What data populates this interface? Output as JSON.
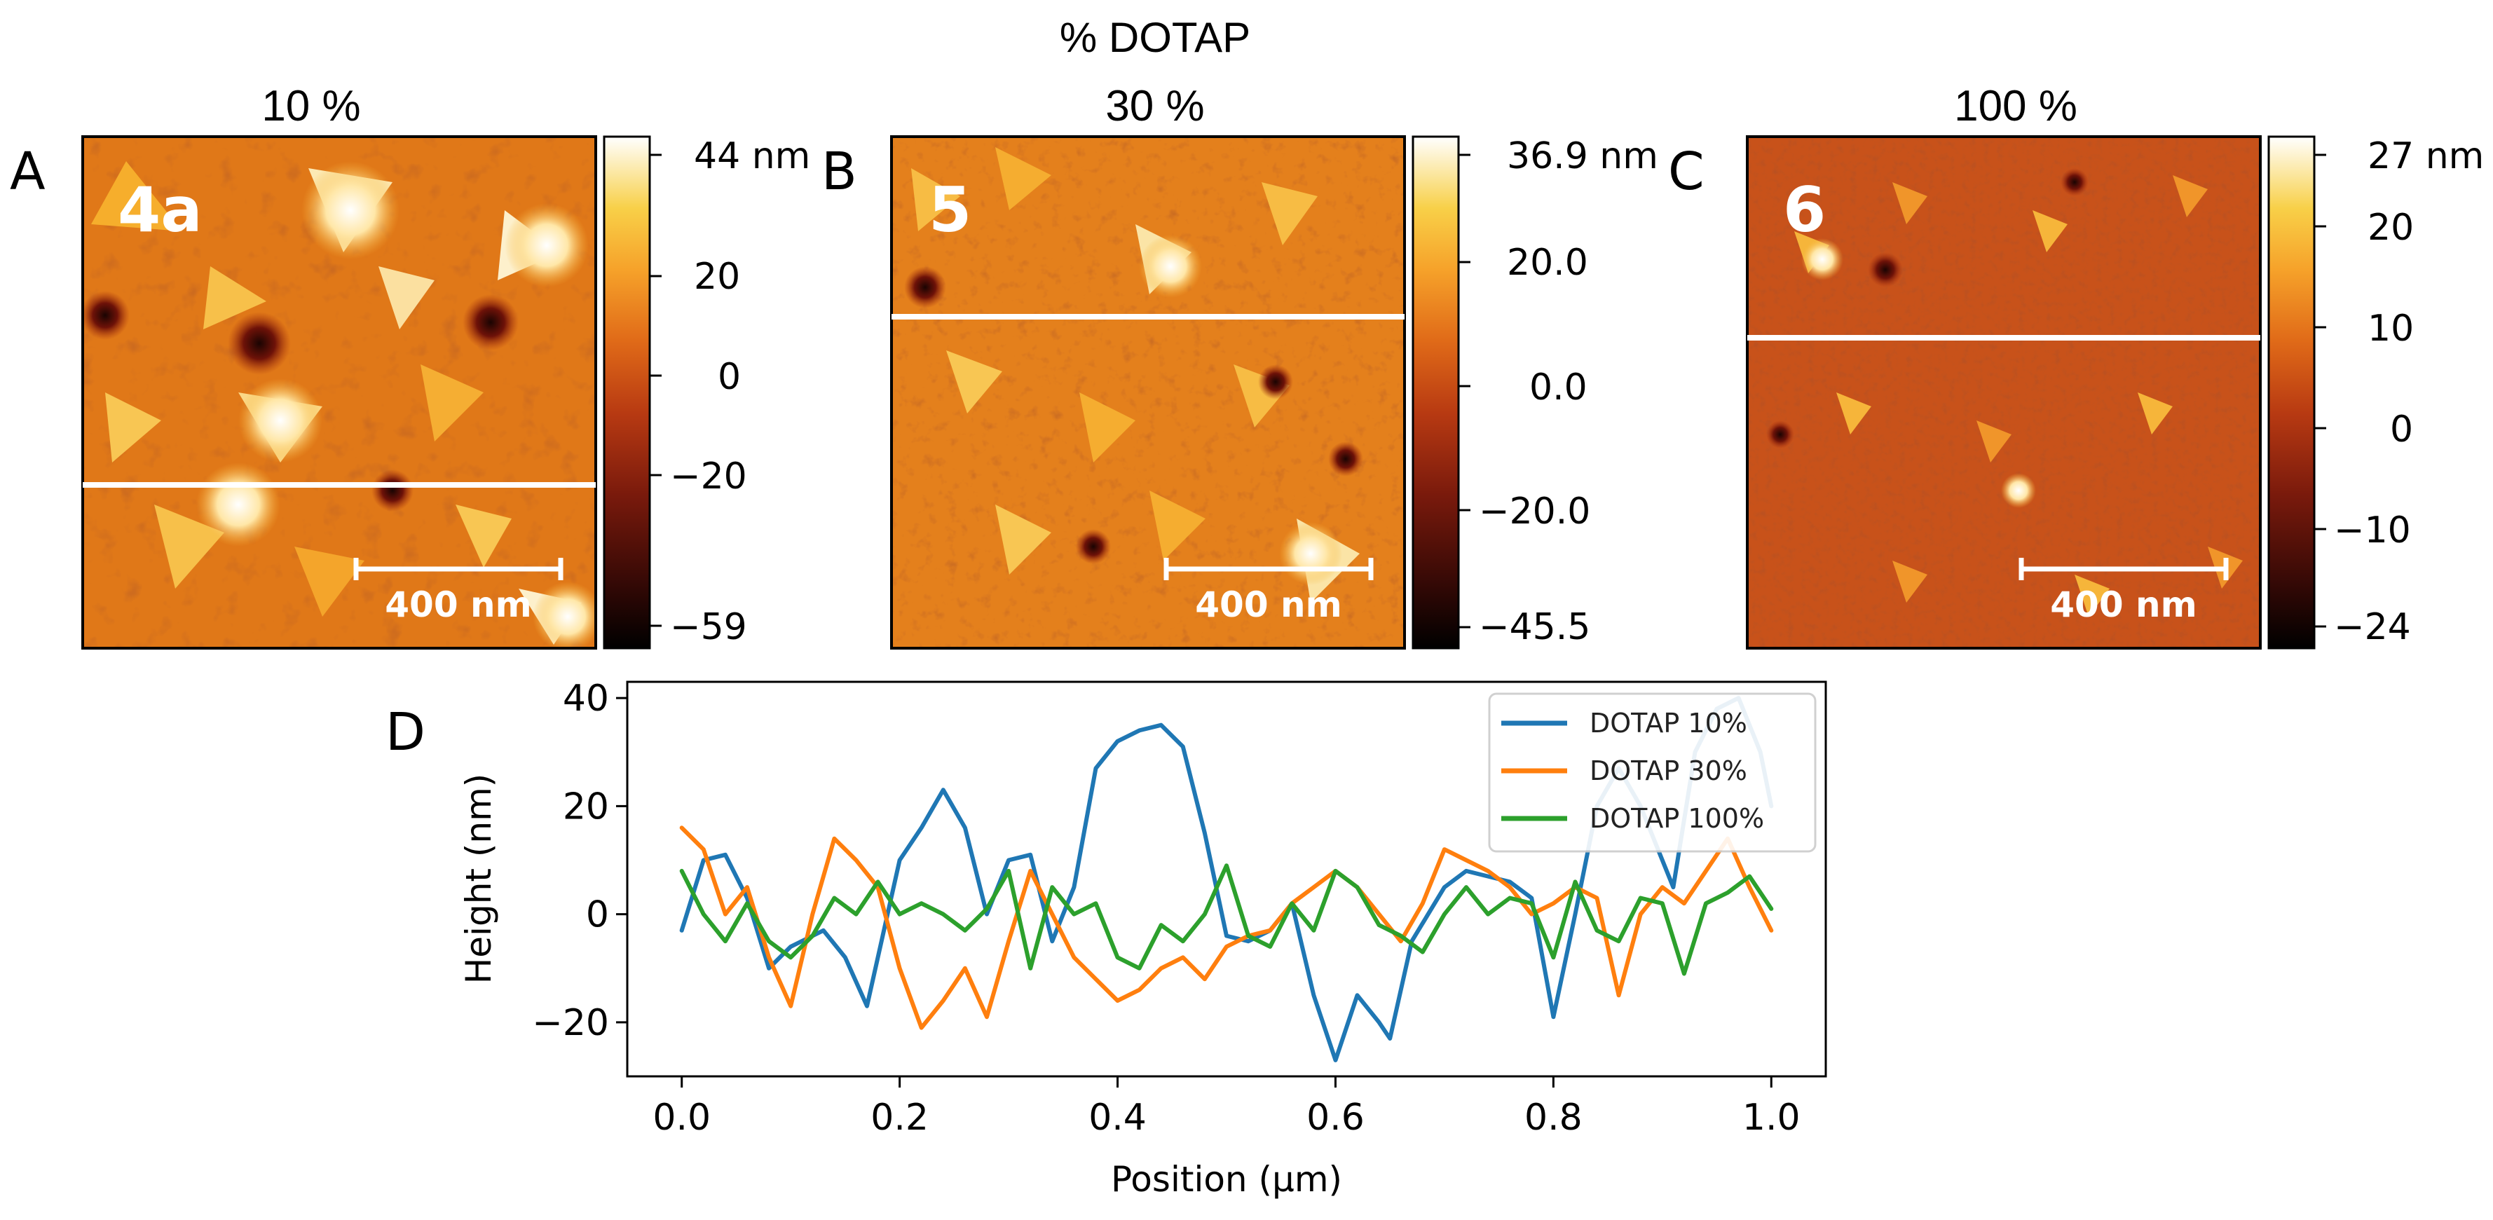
{
  "figure": {
    "top_title": "% DOTAP",
    "afm_panels": [
      {
        "letter": "A",
        "title": "10 %",
        "sample": "4a",
        "scale_bar": "400 nm",
        "colorbar_ticks": [
          "44 nm",
          "20",
          "0",
          "−20",
          "−59"
        ],
        "colorbar_values": [
          44,
          20,
          0,
          -20,
          -59
        ],
        "range": [
          -59,
          44
        ],
        "profile_line_fraction": 0.68
      },
      {
        "letter": "B",
        "title": "30 %",
        "sample": "5",
        "scale_bar": "400 nm",
        "colorbar_ticks": [
          "36.9 nm",
          "20.0",
          "0.0",
          "−20.0",
          "−45.5"
        ],
        "colorbar_values": [
          36.9,
          20.0,
          0.0,
          -20.0,
          -45.5
        ],
        "range": [
          -45.5,
          36.9
        ],
        "profile_line_fraction": 0.35
      },
      {
        "letter": "C",
        "title": "100 %",
        "sample": "6",
        "scale_bar": "400 nm",
        "colorbar_ticks": [
          "27 nm",
          "20",
          "10",
          "0",
          "−10",
          "−24"
        ],
        "colorbar_values": [
          27,
          20,
          10,
          0,
          -10,
          -24
        ],
        "range": [
          -24,
          27
        ],
        "profile_line_fraction": 0.39
      }
    ]
  },
  "colors": {
    "series_10": "#1f77b4",
    "series_30": "#ff7f0e",
    "series_100": "#2ca02c",
    "afm_scale": [
      "#000000",
      "#3a0a06",
      "#7a1a0c",
      "#b83a12",
      "#e06a18",
      "#f6a22a",
      "#f8d048",
      "#ffffff"
    ]
  },
  "chart_data": {
    "panel_letter": "D",
    "type": "line",
    "title": "",
    "xlabel": "Position (μm)",
    "ylabel": "Height (nm)",
    "xlim": [
      -0.05,
      1.05
    ],
    "ylim": [
      -30,
      43
    ],
    "xticks": [
      0.0,
      0.2,
      0.4,
      0.6,
      0.8,
      1.0
    ],
    "xtick_labels": [
      "0.0",
      "0.2",
      "0.4",
      "0.6",
      "0.8",
      "1.0"
    ],
    "yticks": [
      -20,
      0,
      20,
      40
    ],
    "ytick_labels": [
      "−20",
      "0",
      "20",
      "40"
    ],
    "legend_position": "top-right",
    "series": [
      {
        "name": "DOTAP 10%",
        "color": "#1f77b4",
        "x": [
          0.0,
          0.02,
          0.04,
          0.06,
          0.08,
          0.1,
          0.13,
          0.15,
          0.17,
          0.2,
          0.22,
          0.24,
          0.26,
          0.28,
          0.3,
          0.32,
          0.34,
          0.36,
          0.38,
          0.4,
          0.42,
          0.44,
          0.46,
          0.48,
          0.5,
          0.52,
          0.54,
          0.56,
          0.58,
          0.6,
          0.62,
          0.64,
          0.65,
          0.67,
          0.7,
          0.72,
          0.74,
          0.76,
          0.78,
          0.8,
          0.82,
          0.84,
          0.86,
          0.88,
          0.9,
          0.91,
          0.93,
          0.95,
          0.97,
          0.99,
          1.0
        ],
        "y": [
          -3,
          10,
          11,
          3,
          -10,
          -6,
          -3,
          -8,
          -17,
          10,
          16,
          23,
          16,
          0,
          10,
          11,
          -5,
          5,
          27,
          32,
          34,
          35,
          31,
          15,
          -4,
          -5,
          -3,
          2,
          -15,
          -27,
          -15,
          -20,
          -23,
          -5,
          5,
          8,
          7,
          6,
          3,
          -19,
          0,
          20,
          27,
          20,
          10,
          5,
          30,
          38,
          40,
          30,
          20
        ]
      },
      {
        "name": "DOTAP 30%",
        "color": "#ff7f0e",
        "x": [
          0.0,
          0.02,
          0.04,
          0.06,
          0.08,
          0.1,
          0.12,
          0.14,
          0.16,
          0.18,
          0.2,
          0.22,
          0.24,
          0.26,
          0.28,
          0.3,
          0.32,
          0.34,
          0.36,
          0.38,
          0.4,
          0.42,
          0.44,
          0.46,
          0.48,
          0.5,
          0.52,
          0.54,
          0.56,
          0.58,
          0.6,
          0.62,
          0.64,
          0.66,
          0.68,
          0.7,
          0.72,
          0.74,
          0.76,
          0.78,
          0.8,
          0.82,
          0.84,
          0.86,
          0.88,
          0.9,
          0.92,
          0.94,
          0.96,
          0.98,
          1.0
        ],
        "y": [
          16,
          12,
          0,
          5,
          -8,
          -17,
          0,
          14,
          10,
          5,
          -10,
          -21,
          -16,
          -10,
          -19,
          -5,
          8,
          0,
          -8,
          -12,
          -16,
          -14,
          -10,
          -8,
          -12,
          -6,
          -4,
          -3,
          2,
          5,
          8,
          5,
          0,
          -5,
          2,
          12,
          10,
          8,
          5,
          0,
          2,
          5,
          3,
          -15,
          0,
          5,
          2,
          8,
          14,
          5,
          -3
        ]
      },
      {
        "name": "DOTAP 100%",
        "color": "#2ca02c",
        "x": [
          0.0,
          0.02,
          0.04,
          0.06,
          0.08,
          0.1,
          0.12,
          0.14,
          0.16,
          0.18,
          0.2,
          0.22,
          0.24,
          0.26,
          0.28,
          0.3,
          0.32,
          0.34,
          0.36,
          0.38,
          0.4,
          0.42,
          0.44,
          0.46,
          0.48,
          0.5,
          0.52,
          0.54,
          0.56,
          0.58,
          0.6,
          0.62,
          0.64,
          0.66,
          0.68,
          0.7,
          0.72,
          0.74,
          0.76,
          0.78,
          0.8,
          0.82,
          0.84,
          0.86,
          0.88,
          0.9,
          0.92,
          0.94,
          0.96,
          0.98,
          1.0
        ],
        "y": [
          8,
          0,
          -5,
          2,
          -5,
          -8,
          -4,
          3,
          0,
          6,
          0,
          2,
          0,
          -3,
          1,
          8,
          -10,
          5,
          0,
          2,
          -8,
          -10,
          -2,
          -5,
          0,
          9,
          -4,
          -6,
          2,
          -3,
          8,
          5,
          -2,
          -4,
          -7,
          0,
          5,
          0,
          3,
          2,
          -8,
          6,
          -3,
          -5,
          3,
          2,
          -11,
          2,
          4,
          7,
          1
        ]
      }
    ]
  }
}
